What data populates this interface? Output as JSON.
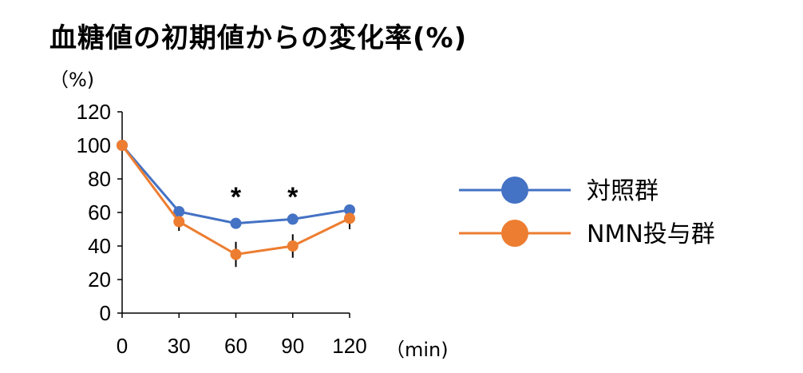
{
  "chart_data": {
    "type": "line",
    "title": "血糖値の初期値からの変化率(%)",
    "y_unit_label": "（%)",
    "x_unit_label": "（min)",
    "x": [
      0,
      30,
      60,
      90,
      120
    ],
    "xticks": [
      "0",
      "30",
      "60",
      "90",
      "120"
    ],
    "yticks": [
      "0",
      "20",
      "40",
      "60",
      "80",
      "100",
      "120"
    ],
    "ylim": [
      0,
      120
    ],
    "xlim": [
      0,
      120
    ],
    "grid": false,
    "legend_position": "right",
    "series": [
      {
        "name": "対照群",
        "color": "#4472c4",
        "values": [
          100,
          60.5,
          53.5,
          56,
          61.5
        ],
        "errors": [
          0,
          0,
          0,
          0,
          0
        ]
      },
      {
        "name": "NMN投与群",
        "color": "#ed7d31",
        "values": [
          100,
          54.5,
          35,
          40,
          56.5
        ],
        "errors": [
          0,
          5.5,
          7.5,
          7,
          6.5
        ]
      }
    ],
    "annotations": [
      {
        "x": 60,
        "text": "*"
      },
      {
        "x": 90,
        "text": "*"
      }
    ]
  }
}
